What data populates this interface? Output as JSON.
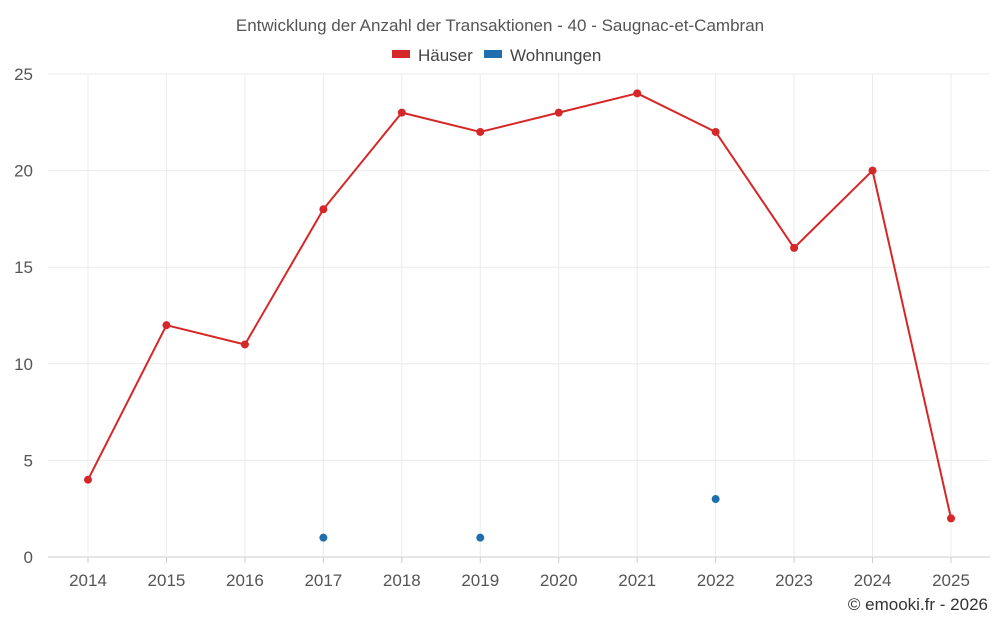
{
  "chart_data": {
    "type": "line",
    "title": "Entwicklung der Anzahl der Transaktionen - 40 - Saugnac-et-Cambran",
    "categories": [
      "2014",
      "2015",
      "2016",
      "2017",
      "2018",
      "2019",
      "2020",
      "2021",
      "2022",
      "2023",
      "2024",
      "2025"
    ],
    "y_ticks": [
      "0",
      "5",
      "10",
      "15",
      "20",
      "25"
    ],
    "ylim": [
      0,
      25
    ],
    "grid": true,
    "legend_position": "top-center",
    "series": [
      {
        "name": "Häuser",
        "color": "#d62728",
        "mode": "line+markers",
        "values": [
          4,
          12,
          11,
          18,
          23,
          22,
          23,
          24,
          22,
          16,
          20,
          2
        ]
      },
      {
        "name": "Wohnungen",
        "color": "#1f6fae",
        "mode": "markers",
        "values": [
          null,
          null,
          null,
          1,
          null,
          1,
          null,
          null,
          3,
          null,
          null,
          null
        ]
      }
    ],
    "credit": "© emooki.fr - 2026"
  }
}
